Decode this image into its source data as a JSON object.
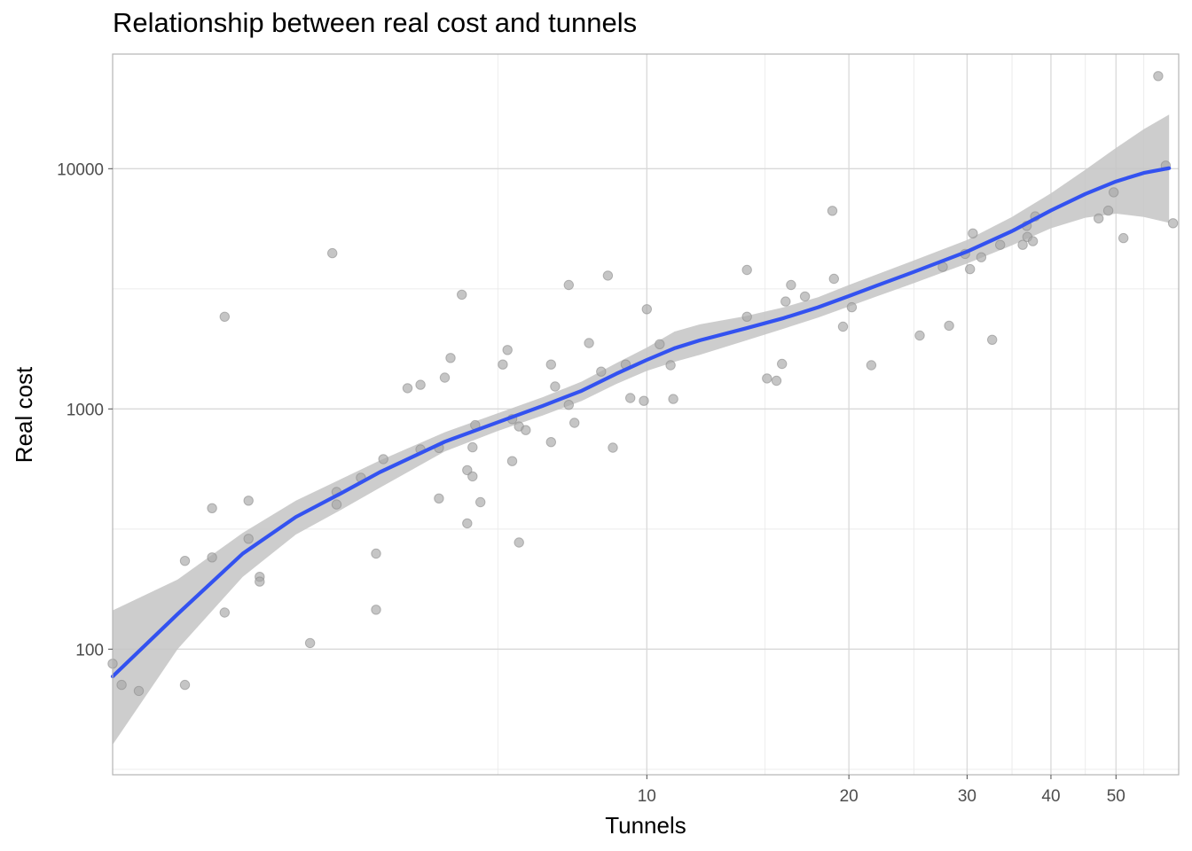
{
  "chart_data": {
    "type": "scatter",
    "title": "Relationship between real cost and tunnels",
    "xlabel": "Tunnels",
    "ylabel": "Real cost",
    "x_scale": "log10",
    "y_scale": "log10",
    "xlim": [
      1.6,
      62
    ],
    "ylim": [
      30,
      30000
    ],
    "x_ticks": [
      10,
      20,
      30,
      40,
      50
    ],
    "y_ticks": [
      100,
      1000,
      10000
    ],
    "grid": true,
    "legend": "none",
    "colors": {
      "points": "#a6a6a6",
      "points_stroke": "#8c8c8c",
      "smooth_line": "#3352f0",
      "confidence_band": "#c4c4c4",
      "grid_major": "#d9d9d9",
      "grid_minor": "#ececec",
      "panel_border": "#b3b3b3"
    },
    "points": [
      [
        1.6,
        87
      ],
      [
        1.65,
        71
      ],
      [
        1.75,
        67
      ],
      [
        2.05,
        71
      ],
      [
        2.05,
        233
      ],
      [
        2.25,
        386
      ],
      [
        2.25,
        241
      ],
      [
        2.35,
        2420
      ],
      [
        2.35,
        142
      ],
      [
        2.55,
        415
      ],
      [
        2.55,
        288
      ],
      [
        2.65,
        200
      ],
      [
        2.65,
        191
      ],
      [
        3.15,
        106
      ],
      [
        3.4,
        4450
      ],
      [
        3.45,
        451
      ],
      [
        3.45,
        400
      ],
      [
        3.75,
        517
      ],
      [
        3.95,
        250
      ],
      [
        3.95,
        146
      ],
      [
        4.05,
        618
      ],
      [
        4.4,
        1220
      ],
      [
        4.6,
        678
      ],
      [
        4.6,
        1260
      ],
      [
        4.9,
        424
      ],
      [
        4.9,
        688
      ],
      [
        5.0,
        1350
      ],
      [
        5.1,
        1630
      ],
      [
        5.3,
        2990
      ],
      [
        5.4,
        556
      ],
      [
        5.4,
        334
      ],
      [
        5.5,
        692
      ],
      [
        5.5,
        524
      ],
      [
        5.55,
        856
      ],
      [
        5.65,
        409
      ],
      [
        6.1,
        1530
      ],
      [
        6.2,
        1760
      ],
      [
        6.3,
        907
      ],
      [
        6.3,
        606
      ],
      [
        6.45,
        845
      ],
      [
        6.45,
        278
      ],
      [
        6.6,
        816
      ],
      [
        7.2,
        1530
      ],
      [
        7.2,
        728
      ],
      [
        7.3,
        1240
      ],
      [
        7.65,
        1040
      ],
      [
        7.65,
        3280
      ],
      [
        7.8,
        875
      ],
      [
        8.2,
        1880
      ],
      [
        8.55,
        1430
      ],
      [
        8.75,
        3590
      ],
      [
        8.9,
        690
      ],
      [
        9.3,
        1530
      ],
      [
        9.45,
        1110
      ],
      [
        9.9,
        1080
      ],
      [
        10.0,
        2600
      ],
      [
        10.45,
        1860
      ],
      [
        10.85,
        1520
      ],
      [
        10.95,
        1100
      ],
      [
        14.1,
        3790
      ],
      [
        14.1,
        2420
      ],
      [
        15.1,
        1340
      ],
      [
        15.6,
        1310
      ],
      [
        15.9,
        1540
      ],
      [
        16.1,
        2800
      ],
      [
        16.4,
        3280
      ],
      [
        17.2,
        2940
      ],
      [
        18.9,
        6680
      ],
      [
        19.0,
        3480
      ],
      [
        19.6,
        2200
      ],
      [
        20.2,
        2650
      ],
      [
        21.6,
        1520
      ],
      [
        25.5,
        2020
      ],
      [
        27.6,
        3900
      ],
      [
        28.2,
        2220
      ],
      [
        29.8,
        4420
      ],
      [
        30.3,
        3820
      ],
      [
        30.6,
        5380
      ],
      [
        31.5,
        4280
      ],
      [
        32.7,
        1940
      ],
      [
        33.6,
        4820
      ],
      [
        36.3,
        4820
      ],
      [
        36.8,
        5780
      ],
      [
        36.9,
        5200
      ],
      [
        37.6,
        4990
      ],
      [
        37.9,
        6330
      ],
      [
        47.1,
        6210
      ],
      [
        48.7,
        6690
      ],
      [
        49.6,
        7980
      ],
      [
        51.3,
        5140
      ],
      [
        57.8,
        24300
      ],
      [
        59.3,
        10300
      ],
      [
        60.8,
        5930
      ]
    ],
    "smooth_line": [
      [
        1.6,
        77
      ],
      [
        2.0,
        140
      ],
      [
        2.5,
        250
      ],
      [
        3.0,
        355
      ],
      [
        3.5,
        445
      ],
      [
        4.0,
        545
      ],
      [
        5.0,
        730
      ],
      [
        6.0,
        880
      ],
      [
        7.0,
        1030
      ],
      [
        8.0,
        1190
      ],
      [
        9.0,
        1400
      ],
      [
        10.0,
        1600
      ],
      [
        11.0,
        1790
      ],
      [
        12.0,
        1930
      ],
      [
        14.0,
        2160
      ],
      [
        16.0,
        2390
      ],
      [
        18.0,
        2650
      ],
      [
        20.0,
        2950
      ],
      [
        22.0,
        3260
      ],
      [
        25.0,
        3720
      ],
      [
        30.0,
        4520
      ],
      [
        35.0,
        5500
      ],
      [
        40.0,
        6700
      ],
      [
        45.0,
        7850
      ],
      [
        50.0,
        8850
      ],
      [
        55.0,
        9600
      ],
      [
        60.0,
        10050
      ]
    ],
    "confidence_band": {
      "upper": [
        [
          1.6,
          145
        ],
        [
          2.0,
          195
        ],
        [
          2.5,
          305
        ],
        [
          3.0,
          415
        ],
        [
          3.5,
          510
        ],
        [
          4.0,
          610
        ],
        [
          5.0,
          800
        ],
        [
          6.0,
          960
        ],
        [
          7.0,
          1120
        ],
        [
          8.0,
          1300
        ],
        [
          9.0,
          1550
        ],
        [
          10.0,
          1800
        ],
        [
          11.0,
          2100
        ],
        [
          12.0,
          2250
        ],
        [
          14.0,
          2430
        ],
        [
          16.0,
          2650
        ],
        [
          18.0,
          2920
        ],
        [
          20.0,
          3280
        ],
        [
          22.0,
          3630
        ],
        [
          25.0,
          4150
        ],
        [
          30.0,
          5050
        ],
        [
          35.0,
          6300
        ],
        [
          40.0,
          7900
        ],
        [
          45.0,
          9900
        ],
        [
          50.0,
          12200
        ],
        [
          55.0,
          14600
        ],
        [
          60.0,
          16800
        ]
      ],
      "lower": [
        [
          1.6,
          40
        ],
        [
          2.0,
          100
        ],
        [
          2.5,
          200
        ],
        [
          3.0,
          300
        ],
        [
          3.5,
          380
        ],
        [
          4.0,
          470
        ],
        [
          5.0,
          665
        ],
        [
          6.0,
          810
        ],
        [
          7.0,
          940
        ],
        [
          8.0,
          1080
        ],
        [
          9.0,
          1270
        ],
        [
          10.0,
          1440
        ],
        [
          11.0,
          1570
        ],
        [
          12.0,
          1680
        ],
        [
          14.0,
          1920
        ],
        [
          16.0,
          2160
        ],
        [
          18.0,
          2400
        ],
        [
          20.0,
          2670
        ],
        [
          22.0,
          2940
        ],
        [
          25.0,
          3340
        ],
        [
          30.0,
          4030
        ],
        [
          35.0,
          4800
        ],
        [
          40.0,
          5650
        ],
        [
          45.0,
          6250
        ],
        [
          50.0,
          6500
        ],
        [
          55.0,
          6300
        ],
        [
          60.0,
          5950
        ]
      ]
    }
  }
}
